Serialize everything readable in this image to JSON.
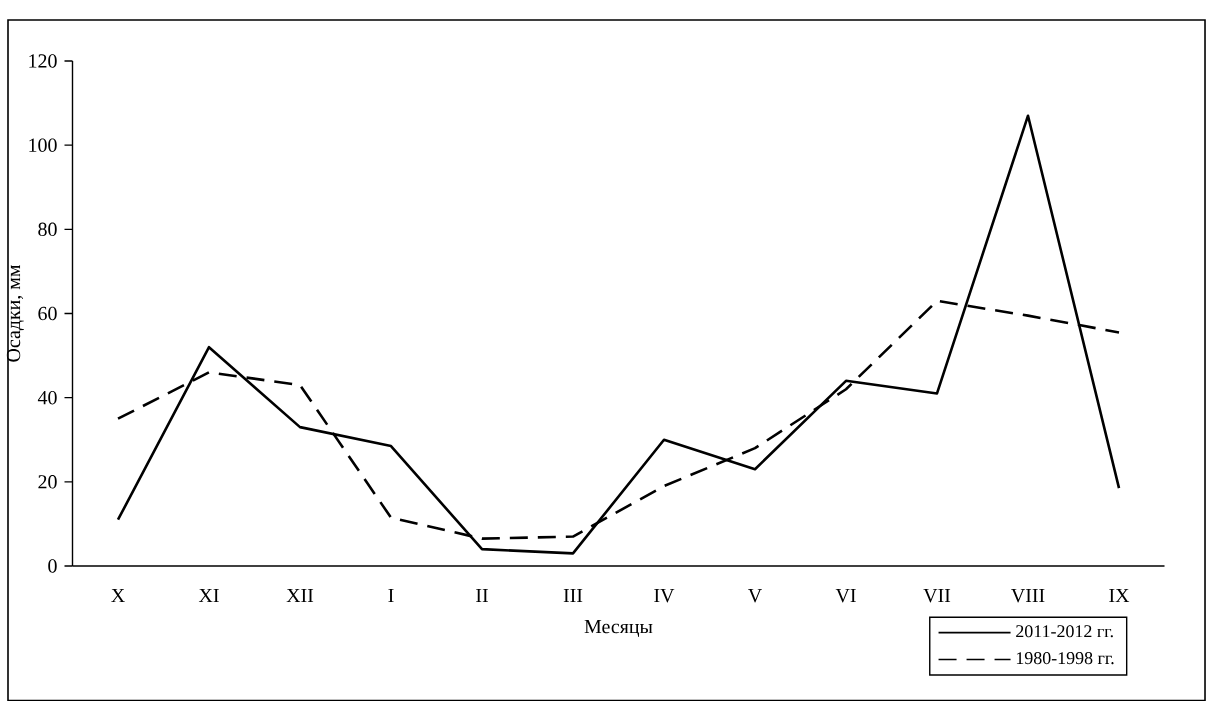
{
  "chart_data": {
    "type": "line",
    "xlabel": "Месяцы",
    "ylabel": "Осадки, мм",
    "categories": [
      "X",
      "XI",
      "XII",
      "I",
      "II",
      "III",
      "IV",
      "V",
      "VI",
      "VII",
      "VIII",
      "IX"
    ],
    "series": [
      {
        "name": "2011-2012 гг.",
        "color": "#000000",
        "line_style": "solid",
        "values": [
          11,
          52,
          33,
          28.5,
          4,
          3,
          30,
          23,
          44,
          41,
          107,
          18.5
        ]
      },
      {
        "name": "1980-1998 гг.",
        "color": "#000000",
        "line_style": "dashed",
        "values": [
          35,
          46,
          43,
          11.5,
          6.5,
          7,
          19,
          28,
          42,
          63,
          59.5,
          55.5
        ]
      }
    ],
    "ylim": [
      0,
      120
    ],
    "yticks": [
      0,
      20,
      40,
      60,
      80,
      100,
      120
    ],
    "grid": false,
    "legend": "bottom right",
    "marker": "none"
  }
}
